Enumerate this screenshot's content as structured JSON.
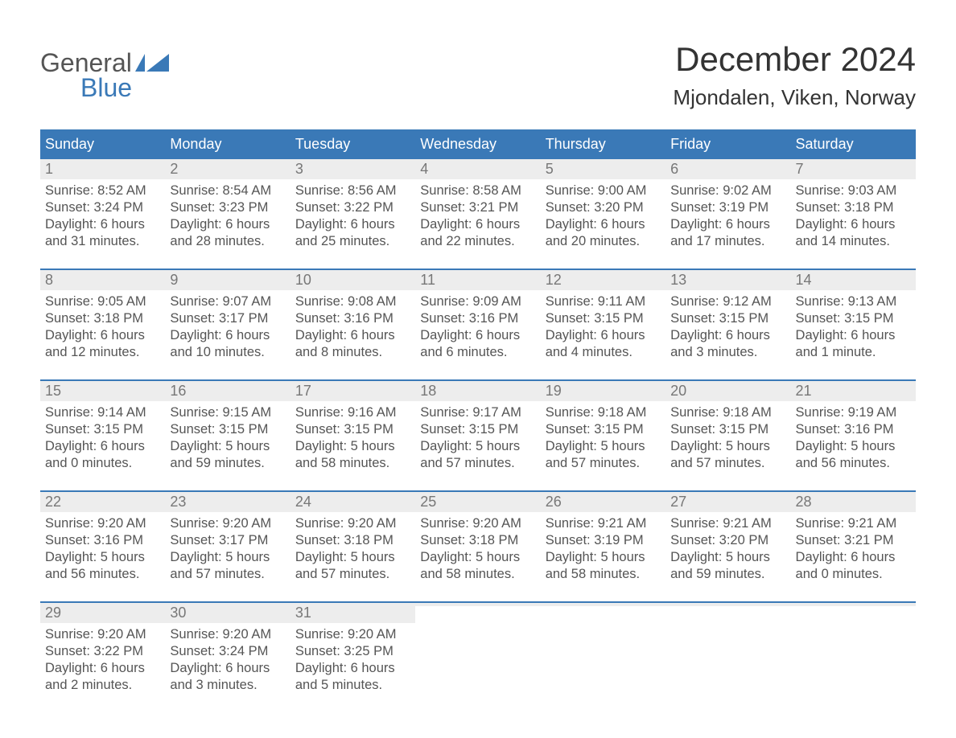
{
  "logo": {
    "text1": "General",
    "text2": "Blue",
    "flag_color": "#3a79b7",
    "text1_color": "#555555",
    "text2_color": "#3a79b7"
  },
  "title": "December 2024",
  "location": "Mjondalen, Viken, Norway",
  "colors": {
    "header_bg": "#3a79b7",
    "header_text": "#ffffff",
    "daynum_bg": "#ededed",
    "daynum_text": "#777777",
    "body_text": "#555555",
    "week_border": "#3a79b7",
    "page_bg": "#ffffff"
  },
  "typography": {
    "title_fontsize": 42,
    "location_fontsize": 26,
    "header_fontsize": 18,
    "daynum_fontsize": 18,
    "body_fontsize": 16.5,
    "font_family": "Arial"
  },
  "day_names": [
    "Sunday",
    "Monday",
    "Tuesday",
    "Wednesday",
    "Thursday",
    "Friday",
    "Saturday"
  ],
  "weeks": [
    [
      {
        "n": "1",
        "sunrise": "Sunrise: 8:52 AM",
        "sunset": "Sunset: 3:24 PM",
        "dl1": "Daylight: 6 hours",
        "dl2": "and 31 minutes."
      },
      {
        "n": "2",
        "sunrise": "Sunrise: 8:54 AM",
        "sunset": "Sunset: 3:23 PM",
        "dl1": "Daylight: 6 hours",
        "dl2": "and 28 minutes."
      },
      {
        "n": "3",
        "sunrise": "Sunrise: 8:56 AM",
        "sunset": "Sunset: 3:22 PM",
        "dl1": "Daylight: 6 hours",
        "dl2": "and 25 minutes."
      },
      {
        "n": "4",
        "sunrise": "Sunrise: 8:58 AM",
        "sunset": "Sunset: 3:21 PM",
        "dl1": "Daylight: 6 hours",
        "dl2": "and 22 minutes."
      },
      {
        "n": "5",
        "sunrise": "Sunrise: 9:00 AM",
        "sunset": "Sunset: 3:20 PM",
        "dl1": "Daylight: 6 hours",
        "dl2": "and 20 minutes."
      },
      {
        "n": "6",
        "sunrise": "Sunrise: 9:02 AM",
        "sunset": "Sunset: 3:19 PM",
        "dl1": "Daylight: 6 hours",
        "dl2": "and 17 minutes."
      },
      {
        "n": "7",
        "sunrise": "Sunrise: 9:03 AM",
        "sunset": "Sunset: 3:18 PM",
        "dl1": "Daylight: 6 hours",
        "dl2": "and 14 minutes."
      }
    ],
    [
      {
        "n": "8",
        "sunrise": "Sunrise: 9:05 AM",
        "sunset": "Sunset: 3:18 PM",
        "dl1": "Daylight: 6 hours",
        "dl2": "and 12 minutes."
      },
      {
        "n": "9",
        "sunrise": "Sunrise: 9:07 AM",
        "sunset": "Sunset: 3:17 PM",
        "dl1": "Daylight: 6 hours",
        "dl2": "and 10 minutes."
      },
      {
        "n": "10",
        "sunrise": "Sunrise: 9:08 AM",
        "sunset": "Sunset: 3:16 PM",
        "dl1": "Daylight: 6 hours",
        "dl2": "and 8 minutes."
      },
      {
        "n": "11",
        "sunrise": "Sunrise: 9:09 AM",
        "sunset": "Sunset: 3:16 PM",
        "dl1": "Daylight: 6 hours",
        "dl2": "and 6 minutes."
      },
      {
        "n": "12",
        "sunrise": "Sunrise: 9:11 AM",
        "sunset": "Sunset: 3:15 PM",
        "dl1": "Daylight: 6 hours",
        "dl2": "and 4 minutes."
      },
      {
        "n": "13",
        "sunrise": "Sunrise: 9:12 AM",
        "sunset": "Sunset: 3:15 PM",
        "dl1": "Daylight: 6 hours",
        "dl2": "and 3 minutes."
      },
      {
        "n": "14",
        "sunrise": "Sunrise: 9:13 AM",
        "sunset": "Sunset: 3:15 PM",
        "dl1": "Daylight: 6 hours",
        "dl2": "and 1 minute."
      }
    ],
    [
      {
        "n": "15",
        "sunrise": "Sunrise: 9:14 AM",
        "sunset": "Sunset: 3:15 PM",
        "dl1": "Daylight: 6 hours",
        "dl2": "and 0 minutes."
      },
      {
        "n": "16",
        "sunrise": "Sunrise: 9:15 AM",
        "sunset": "Sunset: 3:15 PM",
        "dl1": "Daylight: 5 hours",
        "dl2": "and 59 minutes."
      },
      {
        "n": "17",
        "sunrise": "Sunrise: 9:16 AM",
        "sunset": "Sunset: 3:15 PM",
        "dl1": "Daylight: 5 hours",
        "dl2": "and 58 minutes."
      },
      {
        "n": "18",
        "sunrise": "Sunrise: 9:17 AM",
        "sunset": "Sunset: 3:15 PM",
        "dl1": "Daylight: 5 hours",
        "dl2": "and 57 minutes."
      },
      {
        "n": "19",
        "sunrise": "Sunrise: 9:18 AM",
        "sunset": "Sunset: 3:15 PM",
        "dl1": "Daylight: 5 hours",
        "dl2": "and 57 minutes."
      },
      {
        "n": "20",
        "sunrise": "Sunrise: 9:18 AM",
        "sunset": "Sunset: 3:15 PM",
        "dl1": "Daylight: 5 hours",
        "dl2": "and 57 minutes."
      },
      {
        "n": "21",
        "sunrise": "Sunrise: 9:19 AM",
        "sunset": "Sunset: 3:16 PM",
        "dl1": "Daylight: 5 hours",
        "dl2": "and 56 minutes."
      }
    ],
    [
      {
        "n": "22",
        "sunrise": "Sunrise: 9:20 AM",
        "sunset": "Sunset: 3:16 PM",
        "dl1": "Daylight: 5 hours",
        "dl2": "and 56 minutes."
      },
      {
        "n": "23",
        "sunrise": "Sunrise: 9:20 AM",
        "sunset": "Sunset: 3:17 PM",
        "dl1": "Daylight: 5 hours",
        "dl2": "and 57 minutes."
      },
      {
        "n": "24",
        "sunrise": "Sunrise: 9:20 AM",
        "sunset": "Sunset: 3:18 PM",
        "dl1": "Daylight: 5 hours",
        "dl2": "and 57 minutes."
      },
      {
        "n": "25",
        "sunrise": "Sunrise: 9:20 AM",
        "sunset": "Sunset: 3:18 PM",
        "dl1": "Daylight: 5 hours",
        "dl2": "and 58 minutes."
      },
      {
        "n": "26",
        "sunrise": "Sunrise: 9:21 AM",
        "sunset": "Sunset: 3:19 PM",
        "dl1": "Daylight: 5 hours",
        "dl2": "and 58 minutes."
      },
      {
        "n": "27",
        "sunrise": "Sunrise: 9:21 AM",
        "sunset": "Sunset: 3:20 PM",
        "dl1": "Daylight: 5 hours",
        "dl2": "and 59 minutes."
      },
      {
        "n": "28",
        "sunrise": "Sunrise: 9:21 AM",
        "sunset": "Sunset: 3:21 PM",
        "dl1": "Daylight: 6 hours",
        "dl2": "and 0 minutes."
      }
    ],
    [
      {
        "n": "29",
        "sunrise": "Sunrise: 9:20 AM",
        "sunset": "Sunset: 3:22 PM",
        "dl1": "Daylight: 6 hours",
        "dl2": "and 2 minutes."
      },
      {
        "n": "30",
        "sunrise": "Sunrise: 9:20 AM",
        "sunset": "Sunset: 3:24 PM",
        "dl1": "Daylight: 6 hours",
        "dl2": "and 3 minutes."
      },
      {
        "n": "31",
        "sunrise": "Sunrise: 9:20 AM",
        "sunset": "Sunset: 3:25 PM",
        "dl1": "Daylight: 6 hours",
        "dl2": "and 5 minutes."
      },
      {
        "n": "",
        "sunrise": "",
        "sunset": "",
        "dl1": "",
        "dl2": "",
        "empty": true
      },
      {
        "n": "",
        "sunrise": "",
        "sunset": "",
        "dl1": "",
        "dl2": "",
        "empty": true
      },
      {
        "n": "",
        "sunrise": "",
        "sunset": "",
        "dl1": "",
        "dl2": "",
        "empty": true
      },
      {
        "n": "",
        "sunrise": "",
        "sunset": "",
        "dl1": "",
        "dl2": "",
        "empty": true
      }
    ]
  ]
}
